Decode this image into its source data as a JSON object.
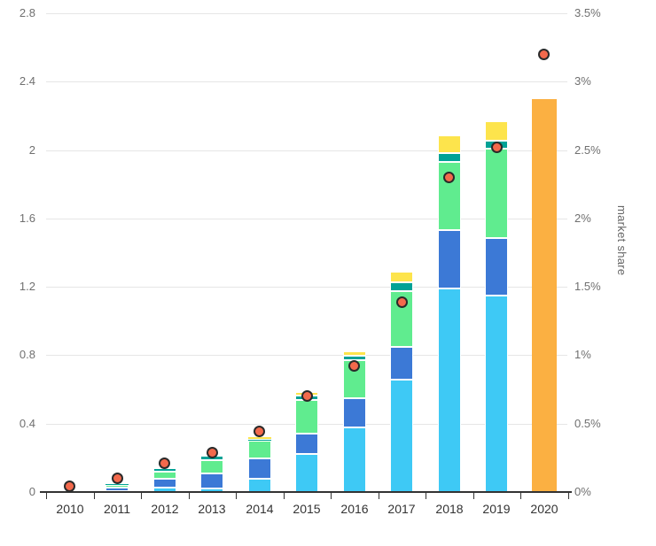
{
  "chart_data": {
    "type": "bar",
    "subtype": "stacked-column-with-line-markers",
    "title": "",
    "categories": [
      "2010",
      "2011",
      "2012",
      "2013",
      "2014",
      "2015",
      "2016",
      "2017",
      "2018",
      "2019",
      "2020"
    ],
    "left_axis": {
      "label": "",
      "min": 0,
      "max": 2.8,
      "tick_values": [
        0,
        0.4,
        0.8,
        1.2,
        1.6,
        2,
        2.4,
        2.8
      ],
      "tick_labels": [
        "0",
        "0.4",
        "0.8",
        "1.2",
        "1.6",
        "2",
        "2.4",
        "2.8"
      ]
    },
    "right_axis": {
      "label": "market share",
      "min": 0,
      "max": 3.5,
      "tick_values": [
        0,
        0.5,
        1,
        1.5,
        2,
        2.5,
        3,
        3.5
      ],
      "tick_labels": [
        "0%",
        "0.5%",
        "1%",
        "1.5%",
        "2%",
        "2.5%",
        "3%",
        "3.5%"
      ]
    },
    "grid": "horizontal-only",
    "legend": "none",
    "stacked_series": [
      {
        "name": "light-blue",
        "color": "#3ec9f5",
        "values": [
          0.003,
          0.006,
          0.025,
          0.02,
          0.078,
          0.225,
          0.38,
          0.655,
          1.19,
          1.15,
          0
        ]
      },
      {
        "name": "dark-blue",
        "color": "#3c79d6",
        "values": [
          0.005,
          0.02,
          0.052,
          0.088,
          0.121,
          0.115,
          0.168,
          0.196,
          0.34,
          0.335,
          0
        ]
      },
      {
        "name": "green",
        "color": "#60ec8f",
        "values": [
          0.003,
          0.016,
          0.042,
          0.078,
          0.1,
          0.2,
          0.225,
          0.322,
          0.4,
          0.525,
          0
        ]
      },
      {
        "name": "teal",
        "color": "#00a296",
        "values": [
          0.002,
          0.012,
          0.02,
          0.026,
          0.012,
          0.025,
          0.025,
          0.053,
          0.05,
          0.047,
          0
        ]
      },
      {
        "name": "yellow",
        "color": "#fde44c",
        "values": [
          0,
          0.003,
          0.004,
          0.005,
          0.015,
          0.02,
          0.027,
          0.061,
          0.105,
          0.113,
          0
        ]
      }
    ],
    "highlight_bar": {
      "name": "orange-2020",
      "category": "2020",
      "color": "#fbb042",
      "value": 2.3
    },
    "dot_series": {
      "name": "market-share",
      "axis": "right",
      "fill": "#f3694c",
      "stroke": "#2a2a2a",
      "values_pct": [
        0.04,
        0.1,
        0.21,
        0.29,
        0.44,
        0.7,
        0.92,
        1.39,
        2.3,
        2.52,
        3.2
      ]
    },
    "colors": {
      "background": "#ffffff",
      "gridline": "#e6e6e6",
      "axis_line": "#333333",
      "axis_label": "#707070",
      "category_label": "#333333",
      "axis_title": "#666666"
    }
  }
}
